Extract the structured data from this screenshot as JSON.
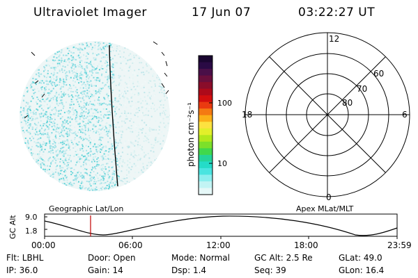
{
  "header": {
    "instrument": "Ultraviolet Imager",
    "date": "17 Jun 07",
    "time": "03:22:27 UT"
  },
  "colorbar": {
    "unit_label": "photon cm⁻²s⁻¹",
    "ticks": [
      "100",
      "10"
    ],
    "colors": [
      "#1a0630",
      "#2a0a44",
      "#4a0f48",
      "#6a0f3c",
      "#8a0d2a",
      "#ad0a1a",
      "#d20e0e",
      "#ea3a10",
      "#f47a12",
      "#fbb018",
      "#fde240",
      "#e2ef2a",
      "#b2e81c",
      "#7ce02a",
      "#40d84c",
      "#24d49a",
      "#24dcc8",
      "#4ae4e0",
      "#8ceeee",
      "#c2f4f4",
      "#e6f8f8"
    ]
  },
  "polar": {
    "mlt_labels": {
      "top": "12",
      "left": "18",
      "right": "6",
      "bottom": "0"
    },
    "lat_labels": [
      "60",
      "70",
      "80"
    ]
  },
  "orbit": {
    "left_label": "Geographic Lat/Lon",
    "right_label": "Apex MLat/MLT",
    "ylabel": "GC Alt",
    "yticks": [
      "9.0",
      "1.8"
    ],
    "xticks": [
      "00:00",
      "06:00",
      "12:00",
      "18:00",
      "23:59"
    ]
  },
  "info": {
    "flt": "Flt: LBHL",
    "door": "Door: Open",
    "mode": "Mode: Normal",
    "gcalt": "GC Alt: 2.5 Re",
    "glat": "GLat:  49.0",
    "ip": "IP: 36.0",
    "gain": "Gain: 14",
    "dsp": "Dsp:    1.4",
    "seq": "Seq: 39",
    "glon": "GLon:  16.4"
  }
}
